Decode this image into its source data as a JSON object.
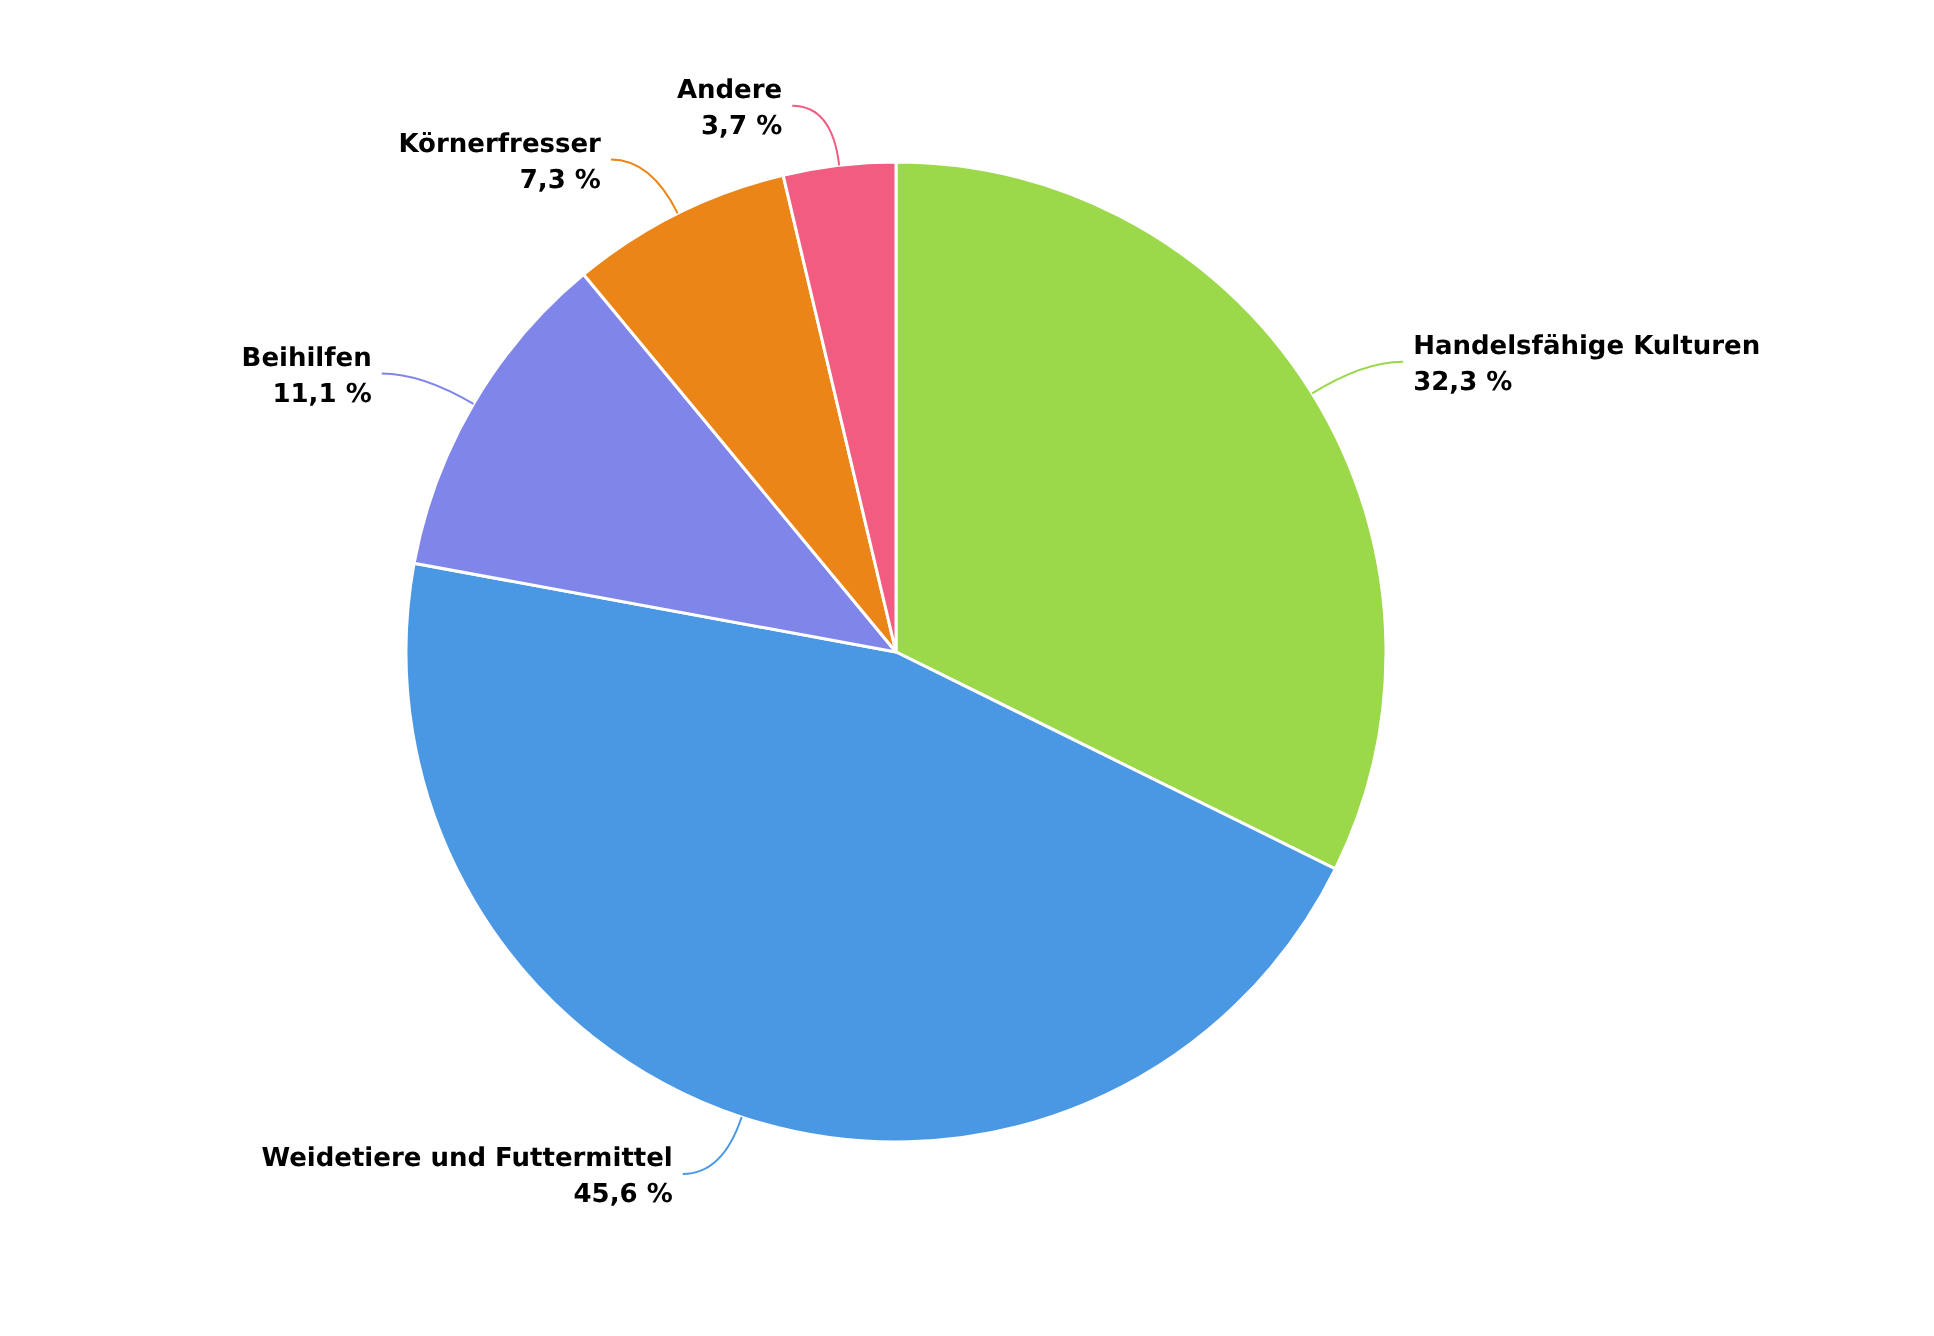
{
  "chart_data": {
    "type": "pie",
    "categories": [
      "Handelsfähige Kulturen",
      "Weidetiere und Futtermittel",
      "Beihilfen",
      "Körnerfresser",
      "Andere"
    ],
    "values": [
      32.3,
      45.6,
      11.1,
      7.3,
      3.7
    ],
    "value_labels": [
      "32,3 %",
      "45,6 %",
      "11,1 %",
      "7,3 %",
      "3,7 %"
    ],
    "colors": [
      "#9bd84a",
      "#4a98e3",
      "#8085e9",
      "#eb8517",
      "#f15c80"
    ]
  }
}
